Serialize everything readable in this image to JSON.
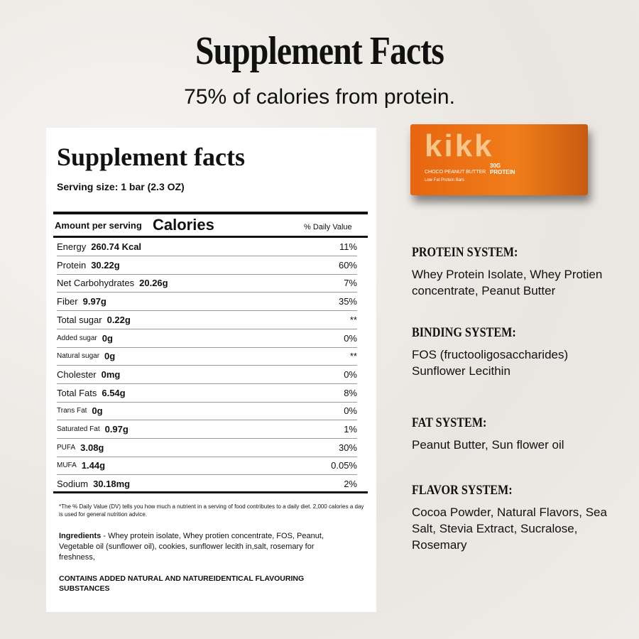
{
  "header": {
    "title": "Supplement Facts",
    "subtitle": "75% of calories from protein."
  },
  "panel": {
    "title": "Supplement facts",
    "serving": "Serving size: 1 bar (2.3 OZ)",
    "amount_label": "Amount per serving",
    "calories_label": "Calories",
    "dv_label": "% Daily Value",
    "rows": [
      [
        "Energy",
        "260.74 Kcal",
        "11%"
      ],
      [
        "Protein",
        "30.22g",
        "60%"
      ],
      [
        "Net Carbohydrates",
        "20.26g",
        "7%"
      ],
      [
        "Fiber",
        "9.97g",
        "35%"
      ],
      [
        "Total sugar",
        "0.22g",
        "**"
      ],
      [
        "Added sugar",
        "0g",
        "0%"
      ],
      [
        "Natural sugar",
        "0g",
        "**"
      ],
      [
        "Cholester",
        "0mg",
        "0%"
      ],
      [
        "Total Fats",
        "6.54g",
        "8%"
      ],
      [
        "Trans Fat",
        "0g",
        "0%"
      ],
      [
        "Saturated Fat",
        "0.97g",
        "1%"
      ],
      [
        "PUFA",
        "3.08g",
        "30%"
      ],
      [
        "MUFA",
        "1.44g",
        "0.05%"
      ],
      [
        "Sodium",
        "30.18mg",
        "2%"
      ]
    ],
    "footnote": "*The % Daily Value (DV) tells you how much a nutrient in a serving of food contributes to a daily diet. 2,000 calories a day is used for general nutrition advice.",
    "ingredients_label": "Ingredients",
    "ingredients": " - Whey protein isolate, Whey protien concentrate, FOS, Peanut, Vegetable oil (sunflower oil), cookies, sunflower lecith in,salt, rosemary for freshness,",
    "contains": "CONTAINS ADDED NATURAL AND NATUREIDENTICAL FLAVOURING SUBSTANCES"
  },
  "product": {
    "brand": "kikk",
    "flavor": "CHOCO PEANUT BUTTER",
    "protein": "30G PROTEIN",
    "tagline": "Low Fat Protein Bars"
  },
  "systems": [
    {
      "title": "PROTEIN SYSTEM:",
      "text": "Whey Protein Isolate, Whey Protien concentrate, Peanut Butter"
    },
    {
      "title": "BINDING SYSTEM:",
      "text": "FOS (fructooligosaccharides) Sunflower Lecithin"
    },
    {
      "title": "FAT SYSTEM:",
      "text": "Peanut Butter, Sun flower oil"
    },
    {
      "title": "FLAVOR SYSTEM:",
      "text": "Cocoa Powder, Natural Flavors, Sea Salt, Stevia Extract, Sucralose, Rosemary"
    }
  ]
}
